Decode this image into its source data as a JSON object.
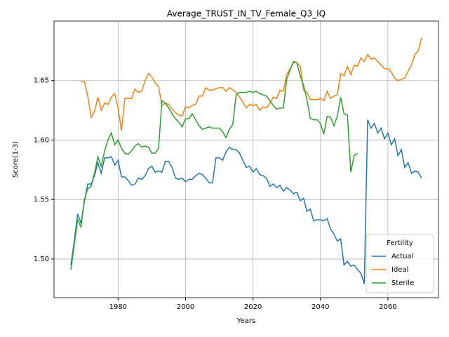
{
  "chart_data": {
    "type": "line",
    "title": "Average_TRUST_IN_TV_Female_Q3_IQ",
    "x_label": "Years",
    "y_label": "Score(1-3)",
    "x": [
      1966,
      1967,
      1968,
      1969,
      1970,
      1971,
      1972,
      1973,
      1974,
      1975,
      1976,
      1977,
      1978,
      1979,
      1980,
      1981,
      1982,
      1983,
      1984,
      1985,
      1986,
      1987,
      1988,
      1989,
      1990,
      1991,
      1992,
      1993,
      1994,
      1995,
      1996,
      1997,
      1998,
      1999,
      2000,
      2001,
      2002,
      2003,
      2004,
      2005,
      2006,
      2007,
      2008,
      2009,
      2010,
      2011,
      2012,
      2013,
      2014,
      2015,
      2016,
      2017,
      2018,
      2019,
      2020,
      2021,
      2022,
      2023,
      2024,
      2025,
      2026,
      2027,
      2028,
      2029,
      2030,
      2031,
      2032,
      2033,
      2034,
      2035,
      2036,
      2037,
      2038,
      2039,
      2040,
      2041,
      2042,
      2043,
      2044,
      2045,
      2046,
      2047,
      2048,
      2049,
      2050,
      2051,
      2052,
      2053,
      2054,
      2055,
      2056,
      2057,
      2058,
      2059,
      2060,
      2061,
      2062,
      2063,
      2064,
      2065,
      2066,
      2067,
      2068,
      2069,
      2070
    ],
    "series": [
      {
        "name": "Actual",
        "color": "#1f77b4",
        "values": [
          1.495,
          1.515,
          1.538,
          1.53,
          1.548,
          1.563,
          1.563,
          1.57,
          1.581,
          1.572,
          1.585,
          1.585,
          1.586,
          1.579,
          1.583,
          1.569,
          1.569,
          1.566,
          1.562,
          1.563,
          1.568,
          1.567,
          1.57,
          1.576,
          1.578,
          1.573,
          1.574,
          1.573,
          1.582,
          1.582,
          1.577,
          1.568,
          1.567,
          1.568,
          1.565,
          1.567,
          1.567,
          1.57,
          1.572,
          1.571,
          1.568,
          1.564,
          1.564,
          1.585,
          1.585,
          1.583,
          1.59,
          1.594,
          1.592,
          1.592,
          1.589,
          1.583,
          1.577,
          1.578,
          1.573,
          1.576,
          1.571,
          1.57,
          1.568,
          1.561,
          1.563,
          1.56,
          1.562,
          1.557,
          1.56,
          1.558,
          1.555,
          1.556,
          1.549,
          1.551,
          1.54,
          1.542,
          1.532,
          1.533,
          1.533,
          1.532,
          1.534,
          1.525,
          1.521,
          1.515,
          1.517,
          1.495,
          1.498,
          1.494,
          1.495,
          1.491,
          1.488,
          1.479,
          1.617,
          1.61,
          1.614,
          1.606,
          1.61,
          1.601,
          1.606,
          1.596,
          1.601,
          1.587,
          1.592,
          1.577,
          1.581,
          1.572,
          1.574,
          1.573,
          1.568
        ]
      },
      {
        "name": "Ideal",
        "color": "#ff7f0e",
        "values": [
          null,
          null,
          null,
          1.649,
          1.649,
          1.637,
          1.619,
          1.624,
          1.636,
          1.625,
          1.631,
          1.63,
          1.636,
          1.639,
          1.627,
          1.608,
          1.635,
          1.635,
          1.635,
          1.643,
          1.64,
          1.641,
          1.65,
          1.656,
          1.653,
          1.648,
          1.645,
          1.629,
          1.631,
          1.63,
          1.626,
          1.623,
          1.621,
          1.62,
          1.628,
          1.627,
          1.629,
          1.63,
          1.637,
          1.637,
          1.644,
          1.642,
          1.642,
          1.643,
          1.644,
          1.644,
          1.641,
          1.644,
          1.642,
          1.64,
          1.636,
          1.632,
          1.627,
          1.63,
          1.629,
          1.63,
          1.625,
          1.628,
          1.627,
          1.631,
          1.636,
          1.635,
          1.642,
          1.641,
          1.655,
          1.66,
          1.665,
          1.665,
          1.662,
          1.642,
          1.64,
          1.634,
          1.634,
          1.634,
          1.635,
          1.633,
          1.641,
          1.635,
          1.637,
          1.638,
          1.656,
          1.654,
          1.662,
          1.655,
          1.663,
          1.662,
          1.669,
          1.666,
          1.672,
          1.668,
          1.669,
          1.666,
          1.663,
          1.66,
          1.66,
          1.657,
          1.652,
          1.65,
          1.651,
          1.652,
          1.658,
          1.663,
          1.672,
          1.675,
          1.686
        ]
      },
      {
        "name": "Sterile",
        "color": "#2ca02c",
        "values": [
          1.491,
          1.512,
          1.533,
          1.527,
          1.55,
          1.559,
          1.561,
          1.572,
          1.586,
          1.578,
          1.591,
          1.6,
          1.606,
          1.596,
          1.6,
          1.593,
          1.589,
          1.588,
          1.591,
          1.595,
          1.597,
          1.594,
          1.595,
          1.594,
          1.589,
          1.589,
          1.593,
          1.633,
          1.631,
          1.627,
          1.622,
          1.618,
          1.615,
          1.611,
          1.618,
          1.618,
          1.622,
          1.617,
          1.612,
          1.609,
          1.61,
          1.611,
          1.61,
          1.61,
          1.61,
          1.607,
          1.602,
          1.609,
          1.613,
          1.638,
          1.64,
          1.64,
          1.64,
          1.641,
          1.64,
          1.641,
          1.639,
          1.638,
          1.637,
          1.633,
          1.629,
          1.626,
          1.627,
          1.627,
          1.651,
          1.659,
          1.666,
          1.665,
          1.654,
          1.646,
          1.634,
          1.618,
          1.617,
          1.617,
          1.614,
          1.605,
          1.62,
          1.619,
          1.612,
          1.62,
          1.636,
          1.622,
          1.621,
          1.573,
          1.587,
          1.589,
          null,
          null,
          null,
          null,
          null,
          null,
          null,
          null,
          null,
          null,
          null,
          null,
          null,
          null,
          null,
          null,
          null,
          null,
          null
        ]
      }
    ],
    "xlim": [
      1961,
      2075
    ],
    "ylim": [
      1.4675,
      1.7
    ],
    "xticks": [
      1980,
      2000,
      2020,
      2040,
      2060
    ],
    "yticks": [
      {
        "value": 1.5,
        "label": "1.50"
      },
      1.55,
      {
        "value": 1.6,
        "label": "1.60"
      },
      1.65
    ],
    "grid": true,
    "legend_title": "Fertility",
    "legend_position": "lower right"
  }
}
